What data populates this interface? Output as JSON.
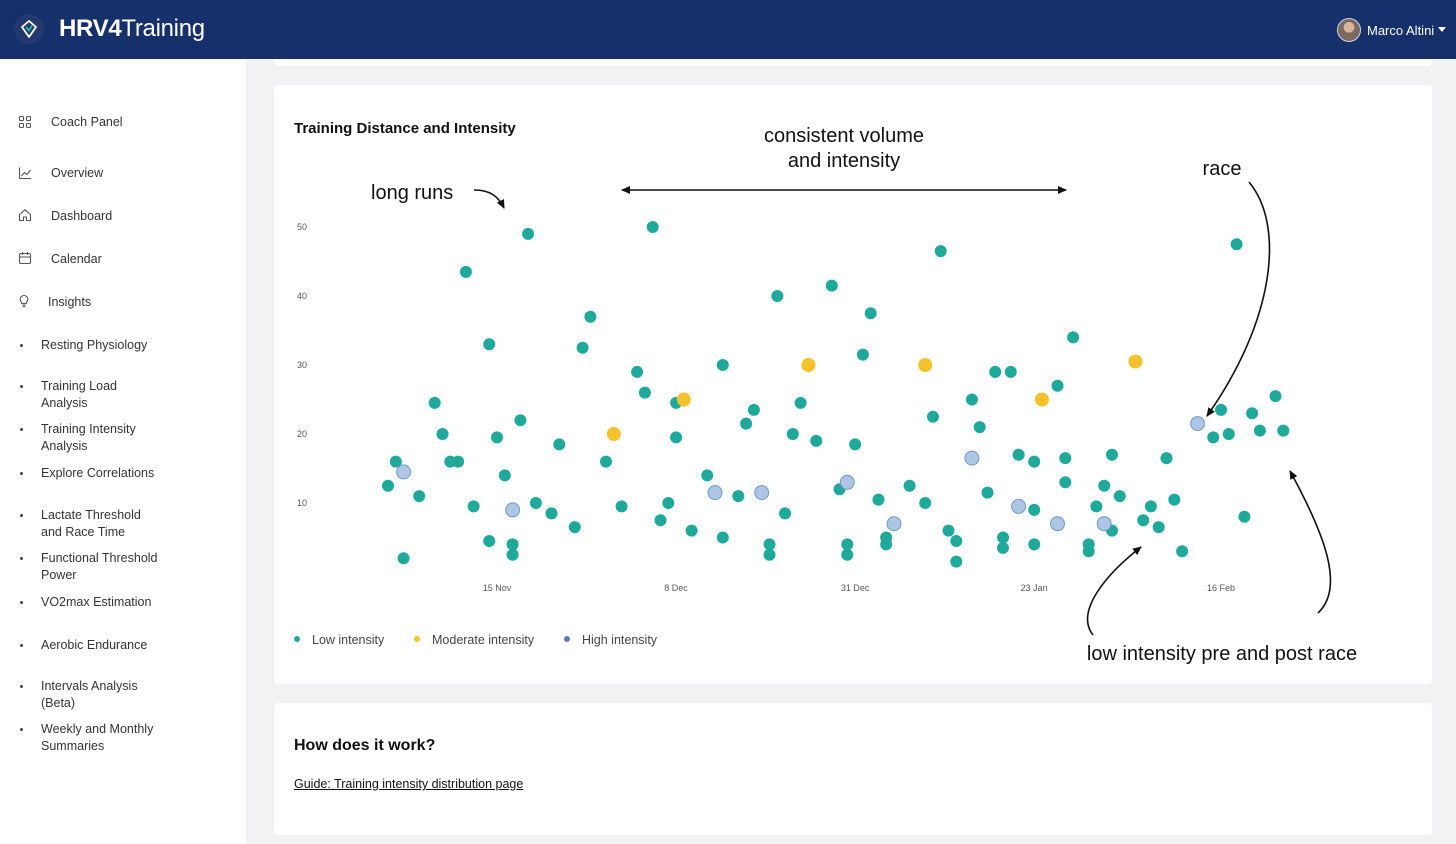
{
  "header": {
    "brand_bold": "HRV4",
    "brand_rest": "Training",
    "user_name": "Marco Altini",
    "logo_icon": "heart-diamond-icon",
    "caret_icon": "caret-down-icon"
  },
  "sidebar": {
    "items": [
      {
        "label": "Coach Panel",
        "icon": "grid-icon"
      },
      {
        "label": "Overview",
        "icon": "line-chart-icon"
      },
      {
        "label": "Dashboard",
        "icon": "home-icon"
      },
      {
        "label": "Calendar",
        "icon": "calendar-icon"
      },
      {
        "label": "Insights",
        "icon": "lightbulb-icon"
      },
      {
        "label": "Resting Physiology"
      },
      {
        "label": "Training Load\nAnalysis"
      },
      {
        "label": "Training Intensity\nAnalysis"
      },
      {
        "label": "Explore Correlations"
      },
      {
        "label": "Lactate Threshold\nand Race Time"
      },
      {
        "label": "Functional Threshold\nPower"
      },
      {
        "label": "VO2max Estimation"
      },
      {
        "label": "Aerobic Endurance"
      },
      {
        "label": "Intervals Analysis\n(Beta)"
      },
      {
        "label": "Weekly and Monthly\nSummaries"
      }
    ]
  },
  "chart_card": {
    "title": "Training Distance and Intensity",
    "annotations": {
      "long_runs": "long runs",
      "consistent_line1": "consistent volume",
      "consistent_line2": "and intensity",
      "race": "race",
      "low_intensity": "low intensity pre and post race"
    },
    "legend": [
      {
        "label": "Low intensity",
        "color": "#1fa99a"
      },
      {
        "label": "Moderate intensity",
        "color": "#f5c22c"
      },
      {
        "label": "High intensity",
        "color": "#5b7bbf"
      }
    ]
  },
  "how_card": {
    "title": "How does it work?",
    "link": "Guide: Training intensity distribution page"
  },
  "colors": {
    "topbar": "#15306b",
    "low": "#1fa99a",
    "moderate": "#f5c22c",
    "high_fill": "#aec6e4",
    "high_stroke": "#6f98cd"
  },
  "chart_data": {
    "type": "scatter",
    "ylim": [
      0,
      55
    ],
    "xlim": [
      "2022-10-31",
      "2023-03-03"
    ],
    "yticks": [
      10,
      20,
      30,
      40,
      50
    ],
    "xticks": [
      {
        "date": "2022-11-15",
        "label": "15 Nov"
      },
      {
        "date": "2022-12-08",
        "label": "8 Dec"
      },
      {
        "date": "2022-12-31",
        "label": "31 Dec"
      },
      {
        "date": "2023-01-23",
        "label": "23 Jan"
      },
      {
        "date": "2023-02-16",
        "label": "16 Feb"
      }
    ],
    "series": [
      {
        "name": "Low intensity",
        "points": [
          [
            "2022-11-01",
            12.5
          ],
          [
            "2022-11-02",
            16
          ],
          [
            "2022-11-03",
            2
          ],
          [
            "2022-11-05",
            11
          ],
          [
            "2022-11-07",
            24.5
          ],
          [
            "2022-11-08",
            20
          ],
          [
            "2022-11-09",
            16
          ],
          [
            "2022-11-10",
            16
          ],
          [
            "2022-11-11",
            43.5
          ],
          [
            "2022-11-12",
            9.5
          ],
          [
            "2022-11-14",
            4.5
          ],
          [
            "2022-11-14",
            33
          ],
          [
            "2022-11-15",
            19.5
          ],
          [
            "2022-11-16",
            14
          ],
          [
            "2022-11-17",
            4
          ],
          [
            "2022-11-17",
            2.5
          ],
          [
            "2022-11-18",
            22
          ],
          [
            "2022-11-19",
            49
          ],
          [
            "2022-11-20",
            10
          ],
          [
            "2022-11-22",
            8.5
          ],
          [
            "2022-11-23",
            18.5
          ],
          [
            "2022-11-25",
            6.5
          ],
          [
            "2022-11-26",
            32.5
          ],
          [
            "2022-11-27",
            37
          ],
          [
            "2022-11-29",
            16
          ],
          [
            "2022-12-01",
            9.5
          ],
          [
            "2022-12-03",
            29
          ],
          [
            "2022-12-04",
            26
          ],
          [
            "2022-12-05",
            50
          ],
          [
            "2022-12-06",
            7.5
          ],
          [
            "2022-12-07",
            10
          ],
          [
            "2022-12-08",
            19.5
          ],
          [
            "2022-12-08",
            24.5
          ],
          [
            "2022-12-10",
            6
          ],
          [
            "2022-12-12",
            14
          ],
          [
            "2022-12-14",
            5
          ],
          [
            "2022-12-16",
            11
          ],
          [
            "2022-12-14",
            30
          ],
          [
            "2022-12-17",
            21.5
          ],
          [
            "2022-12-18",
            23.5
          ],
          [
            "2022-12-20",
            4
          ],
          [
            "2022-12-20",
            2.5
          ],
          [
            "2022-12-21",
            40
          ],
          [
            "2022-12-22",
            8.5
          ],
          [
            "2022-12-23",
            20
          ],
          [
            "2022-12-24",
            24.5
          ],
          [
            "2022-12-26",
            19
          ],
          [
            "2022-12-28",
            41.5
          ],
          [
            "2022-12-29",
            12
          ],
          [
            "2022-12-30",
            4
          ],
          [
            "2022-12-30",
            2.5
          ],
          [
            "2022-12-31",
            18.5
          ],
          [
            "2023-01-01",
            31.5
          ],
          [
            "2023-01-02",
            37.5
          ],
          [
            "2023-01-03",
            10.5
          ],
          [
            "2023-01-04",
            5
          ],
          [
            "2023-01-04",
            4
          ],
          [
            "2023-01-07",
            12.5
          ],
          [
            "2023-01-09",
            10
          ],
          [
            "2023-01-10",
            22.5
          ],
          [
            "2023-01-11",
            46.5
          ],
          [
            "2023-01-12",
            6
          ],
          [
            "2023-01-13",
            4.5
          ],
          [
            "2023-01-13",
            1.5
          ],
          [
            "2023-01-15",
            25
          ],
          [
            "2023-01-16",
            21
          ],
          [
            "2023-01-17",
            11.5
          ],
          [
            "2023-01-18",
            29
          ],
          [
            "2023-01-19",
            5
          ],
          [
            "2023-01-19",
            3.5
          ],
          [
            "2023-01-20",
            29
          ],
          [
            "2023-01-21",
            17
          ],
          [
            "2023-01-23",
            16
          ],
          [
            "2023-01-23",
            9
          ],
          [
            "2023-01-23",
            4
          ],
          [
            "2023-01-26",
            27
          ],
          [
            "2023-01-27",
            16.5
          ],
          [
            "2023-01-27",
            13
          ],
          [
            "2023-01-28",
            34
          ],
          [
            "2023-01-30",
            4
          ],
          [
            "2023-01-30",
            3
          ],
          [
            "2023-01-31",
            9.5
          ],
          [
            "2023-02-01",
            12.5
          ],
          [
            "2023-02-02",
            6
          ],
          [
            "2023-02-02",
            17
          ],
          [
            "2023-02-03",
            11
          ],
          [
            "2023-02-06",
            7.5
          ],
          [
            "2023-02-07",
            9.5
          ],
          [
            "2023-02-08",
            6.5
          ],
          [
            "2023-02-09",
            16.5
          ],
          [
            "2023-02-10",
            10.5
          ],
          [
            "2023-02-11",
            3
          ],
          [
            "2023-02-15",
            19.5
          ],
          [
            "2023-02-16",
            23.5
          ],
          [
            "2023-02-17",
            20
          ],
          [
            "2023-02-18",
            47.5
          ],
          [
            "2023-02-19",
            8
          ],
          [
            "2023-02-20",
            23
          ],
          [
            "2023-02-21",
            20.5
          ],
          [
            "2023-02-23",
            25.5
          ],
          [
            "2023-02-24",
            20.5
          ]
        ]
      },
      {
        "name": "Moderate intensity",
        "points": [
          [
            "2022-11-30",
            20
          ],
          [
            "2022-12-09",
            25
          ],
          [
            "2022-12-25",
            30
          ],
          [
            "2023-01-09",
            30
          ],
          [
            "2023-01-24",
            25
          ],
          [
            "2023-02-05",
            30.5
          ]
        ]
      },
      {
        "name": "High intensity",
        "points": [
          [
            "2022-11-03",
            14.5
          ],
          [
            "2022-11-17",
            9
          ],
          [
            "2022-12-13",
            11.5
          ],
          [
            "2022-12-19",
            11.5
          ],
          [
            "2022-12-30",
            13
          ],
          [
            "2023-01-05",
            7
          ],
          [
            "2023-01-15",
            16.5
          ],
          [
            "2023-01-21",
            9.5
          ],
          [
            "2023-01-26",
            7
          ],
          [
            "2023-02-01",
            7
          ],
          [
            "2023-02-13",
            21.5
          ]
        ]
      }
    ]
  }
}
